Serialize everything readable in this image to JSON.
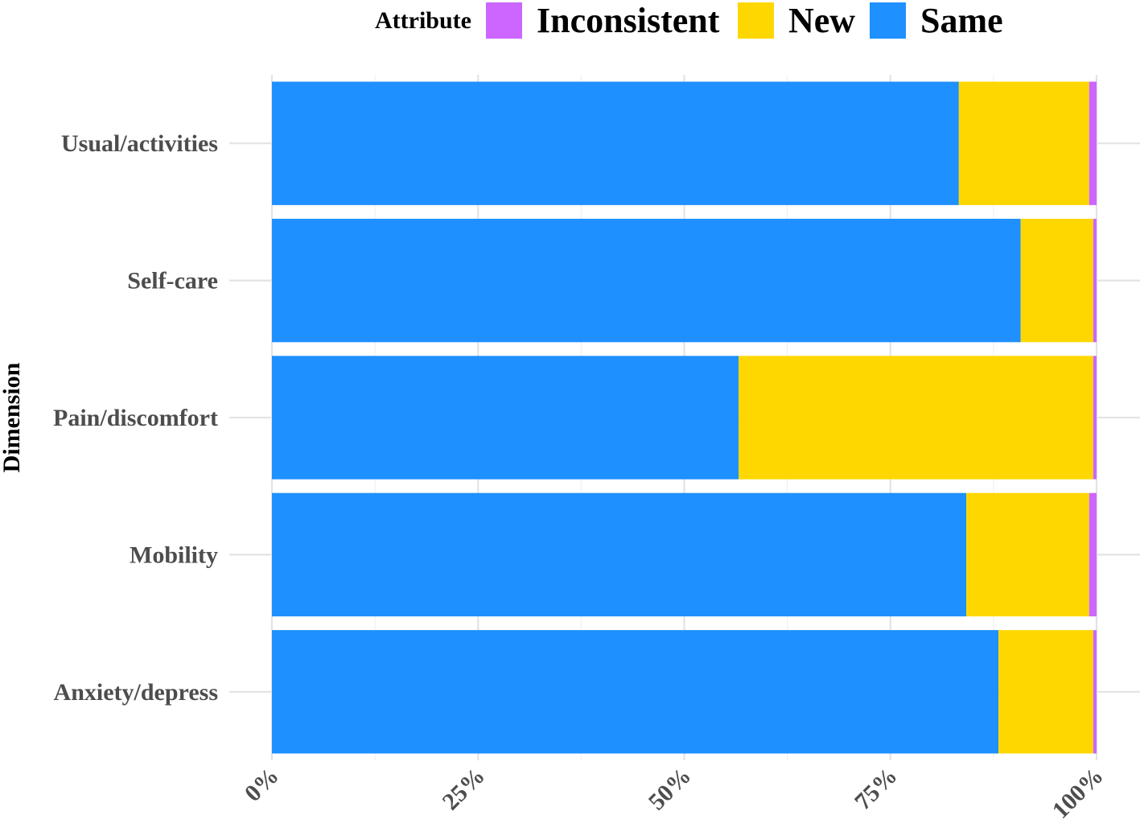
{
  "chart_data": {
    "type": "bar",
    "orientation": "horizontal",
    "stacked": true,
    "normalized": true,
    "title": "",
    "xlabel": "",
    "ylabel": "Dimension",
    "xlim": [
      0,
      100
    ],
    "x_tick_labels": [
      "0%",
      "25%",
      "50%",
      "75%",
      "100%"
    ],
    "x_ticks": [
      0,
      25,
      50,
      75,
      100
    ],
    "categories": [
      "Usual/activities",
      "Self-care",
      "Pain/discomfort",
      "Mobility",
      "Anxiety/depress"
    ],
    "legend": {
      "title": "Attribute",
      "position": "top",
      "entries": [
        "Inconsistent",
        "New",
        "Same"
      ]
    },
    "series": [
      {
        "name": "Same",
        "color": "#1E90FF",
        "values": [
          83.3,
          90.8,
          56.6,
          84.2,
          88.1
        ]
      },
      {
        "name": "New",
        "color": "#FFD700",
        "values": [
          15.8,
          8.8,
          43.0,
          14.9,
          11.5
        ]
      },
      {
        "name": "Inconsistent",
        "color": "#CC66FF",
        "values": [
          0.9,
          0.4,
          0.4,
          0.9,
          0.4
        ]
      }
    ],
    "grid": true
  }
}
